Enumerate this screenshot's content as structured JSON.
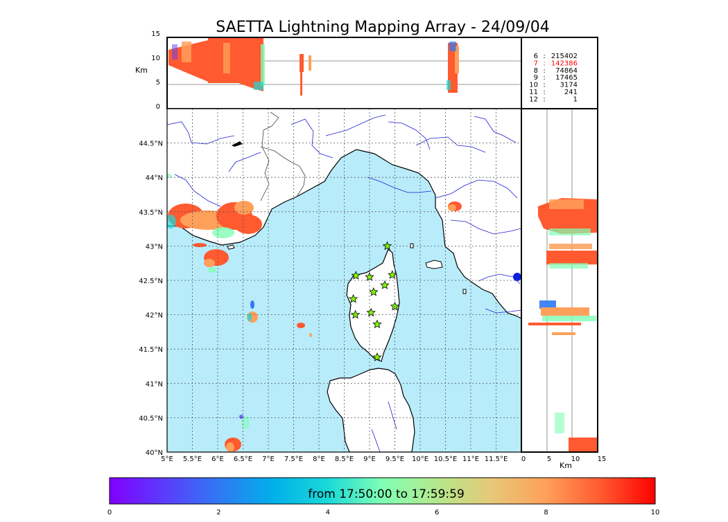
{
  "title": "SAETTA Lightning Mapping Array - 24/09/04",
  "top_panel": {
    "ylabel": "Km",
    "yticks": [
      "15",
      "10",
      "5",
      "0"
    ]
  },
  "right_panel": {
    "xlabel": "Km",
    "xticks": [
      "0",
      "5",
      "10",
      "15"
    ]
  },
  "map": {
    "lon_ticks": [
      "5°E",
      "5.5°E",
      "6°E",
      "6.5°E",
      "7°E",
      "7.5°E",
      "8°E",
      "8.5°E",
      "9°E",
      "9.5°E",
      "10°E",
      "10.5°E",
      "11°E",
      "11.5°E"
    ],
    "lat_ticks": [
      "44.5°N",
      "44°N",
      "43.5°N",
      "43°N",
      "42.5°N",
      "42°N",
      "41.5°N",
      "41°N",
      "40.5°N",
      "40°N"
    ],
    "lon_range": [
      5,
      12
    ],
    "lat_range": [
      40,
      45
    ],
    "sea_color": "#b8ecfb",
    "land_color": "#ffffff"
  },
  "station_counts": [
    {
      "stations": "6",
      "sep": ":",
      "count": "215402",
      "highlight": false
    },
    {
      "stations": "7",
      "sep": ":",
      "count": "142386",
      "highlight": true
    },
    {
      "stations": "8",
      "sep": ":",
      "count": "74864",
      "highlight": false
    },
    {
      "stations": "9",
      "sep": ":",
      "count": "17465",
      "highlight": false
    },
    {
      "stations": "10",
      "sep": ":",
      "count": "3174",
      "highlight": false
    },
    {
      "stations": "11",
      "sep": ":",
      "count": "241",
      "highlight": false
    },
    {
      "stations": "12",
      "sep": ":",
      "count": "1",
      "highlight": false
    }
  ],
  "stations_lonlat": [
    [
      9.35,
      43.0
    ],
    [
      8.73,
      42.57
    ],
    [
      9.0,
      42.55
    ],
    [
      9.45,
      42.58
    ],
    [
      9.3,
      42.43
    ],
    [
      9.08,
      42.33
    ],
    [
      8.68,
      42.23
    ],
    [
      9.5,
      42.12
    ],
    [
      8.72,
      42.0
    ],
    [
      9.03,
      42.03
    ],
    [
      9.15,
      41.86
    ],
    [
      9.15,
      41.38
    ]
  ],
  "colorbar": {
    "label": "from 17:50:00 to 17:59:59",
    "ticks": [
      "0",
      "2",
      "4",
      "6",
      "8",
      "10"
    ],
    "range": [
      0,
      10
    ]
  },
  "colors": {
    "highlight": "#ff0000",
    "station_fill": "#7fff00",
    "river": "#1f1fd6",
    "border": "#444444"
  }
}
